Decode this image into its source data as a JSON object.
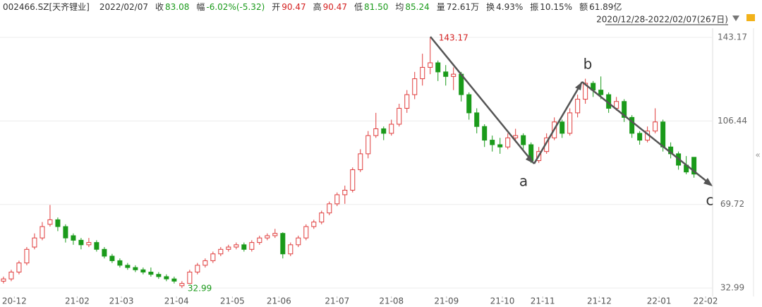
{
  "header": {
    "symbol": "002466.SZ[天齐锂业]",
    "date": "2022/02/07",
    "fields": [
      {
        "label": "收",
        "value": "83.08",
        "color": "#1a9a1a"
      },
      {
        "label": "幅",
        "value": "-6.02%(-5.32)",
        "color": "#1a9a1a"
      },
      {
        "label": "开",
        "value": "90.47",
        "color": "#d42020"
      },
      {
        "label": "高",
        "value": "90.47",
        "color": "#d42020"
      },
      {
        "label": "低",
        "value": "81.50",
        "color": "#1a9a1a"
      },
      {
        "label": "均",
        "value": "85.24",
        "color": "#1a9a1a"
      },
      {
        "label": "量",
        "value": "72.61万",
        "color": "#333333"
      },
      {
        "label": "换",
        "value": "4.93%",
        "color": "#333333"
      },
      {
        "label": "振",
        "value": "10.15%",
        "color": "#333333"
      },
      {
        "label": "额",
        "value": "61.89亿",
        "color": "#333333"
      }
    ],
    "range": "2020/12/28-2022/02/07(267日)"
  },
  "chart_data": {
    "type": "candlestick",
    "up_color": "#e03c3c",
    "down_color": "#1a9a1a",
    "ohlc": [
      [
        36,
        38,
        35,
        37
      ],
      [
        37,
        41,
        36,
        40
      ],
      [
        40,
        45,
        39,
        44
      ],
      [
        44,
        51,
        43,
        50
      ],
      [
        51,
        57,
        50,
        55
      ],
      [
        55,
        62,
        54,
        60
      ],
      [
        61,
        69.5,
        60,
        63
      ],
      [
        63,
        64,
        58,
        60
      ],
      [
        60,
        61,
        53,
        55
      ],
      [
        56,
        57,
        52,
        54
      ],
      [
        54,
        55,
        50,
        52
      ],
      [
        52,
        55,
        51,
        53
      ],
      [
        53,
        54,
        49,
        50
      ],
      [
        50,
        51,
        46,
        47
      ],
      [
        47,
        48,
        44,
        45
      ],
      [
        45,
        46,
        42,
        43
      ],
      [
        43,
        44,
        41,
        42
      ],
      [
        42,
        43,
        40,
        41
      ],
      [
        41,
        42,
        39,
        40
      ],
      [
        40,
        42,
        38,
        39
      ],
      [
        39,
        40,
        37,
        38
      ],
      [
        38,
        39,
        36,
        37
      ],
      [
        37,
        38,
        35,
        36
      ],
      [
        34,
        36,
        32.99,
        35
      ],
      [
        35,
        41,
        35,
        40
      ],
      [
        40,
        44,
        39,
        43
      ],
      [
        43,
        46,
        42,
        45
      ],
      [
        45,
        49,
        44,
        48
      ],
      [
        48,
        51,
        47,
        50
      ],
      [
        50,
        52,
        49,
        51
      ],
      [
        51,
        53,
        50,
        52
      ],
      [
        52,
        53,
        49,
        50
      ],
      [
        50,
        54,
        49,
        53
      ],
      [
        53,
        56,
        52,
        55
      ],
      [
        55,
        57,
        54,
        56
      ],
      [
        56,
        59,
        55,
        57
      ],
      [
        57,
        57.5,
        46,
        48
      ],
      [
        48,
        53,
        47,
        52
      ],
      [
        52,
        56,
        51,
        55
      ],
      [
        55,
        61,
        54,
        60
      ],
      [
        60,
        63,
        59,
        62
      ],
      [
        62,
        67,
        61,
        66
      ],
      [
        66,
        71,
        65,
        70
      ],
      [
        70,
        75,
        69,
        74
      ],
      [
        74,
        78,
        70,
        76
      ],
      [
        76,
        86,
        75,
        85
      ],
      [
        85,
        94,
        84,
        92
      ],
      [
        92,
        102,
        90,
        100
      ],
      [
        100,
        110,
        99,
        103
      ],
      [
        103,
        104,
        98,
        101
      ],
      [
        101,
        107,
        100,
        105
      ],
      [
        105,
        114,
        104,
        112
      ],
      [
        112,
        120,
        110,
        118
      ],
      [
        118,
        128,
        116,
        125
      ],
      [
        125,
        136,
        122,
        130
      ],
      [
        130,
        143.17,
        127,
        132
      ],
      [
        132,
        133,
        124,
        128
      ],
      [
        128,
        131,
        122,
        126
      ],
      [
        126,
        130,
        120,
        127
      ],
      [
        127,
        128,
        115,
        118
      ],
      [
        118,
        119,
        107,
        110
      ],
      [
        110,
        112,
        101,
        104
      ],
      [
        104,
        105,
        95,
        98
      ],
      [
        98,
        100,
        93,
        96
      ],
      [
        96,
        99,
        92,
        95
      ],
      [
        95,
        101,
        94,
        99
      ],
      [
        99,
        103,
        97,
        100
      ],
      [
        100,
        101,
        94,
        96
      ],
      [
        96,
        97,
        88,
        89
      ],
      [
        89,
        95,
        88,
        93
      ],
      [
        93,
        101,
        92,
        99
      ],
      [
        99,
        108,
        98,
        106
      ],
      [
        106,
        107,
        99,
        101
      ],
      [
        101,
        112,
        100,
        110
      ],
      [
        110,
        118,
        108,
        116
      ],
      [
        116,
        125,
        114,
        123
      ],
      [
        123,
        124,
        117,
        120
      ],
      [
        120,
        126,
        116,
        118
      ],
      [
        118,
        119,
        110,
        112
      ],
      [
        112,
        117,
        111,
        115
      ],
      [
        115,
        116,
        106,
        108
      ],
      [
        108,
        109,
        99,
        101
      ],
      [
        101,
        102,
        96,
        98
      ],
      [
        98,
        104,
        97,
        102
      ],
      [
        102,
        112,
        101,
        106
      ],
      [
        106,
        107,
        93,
        95
      ],
      [
        95,
        97,
        90,
        92
      ],
      [
        92,
        93,
        85,
        87
      ],
      [
        87,
        91,
        83,
        84
      ],
      [
        90.47,
        90.47,
        81.5,
        83.08
      ]
    ],
    "xlim": [
      -0.45,
      91.4
    ],
    "xticks": [
      {
        "value": 1.4,
        "label": "20-12"
      },
      {
        "value": 9.5,
        "label": "21-02"
      },
      {
        "value": 15.2,
        "label": "21-03"
      },
      {
        "value": 22.3,
        "label": "21-04"
      },
      {
        "value": 29.5,
        "label": "21-05"
      },
      {
        "value": 35.5,
        "label": "21-06"
      },
      {
        "value": 43,
        "label": "21-07"
      },
      {
        "value": 50,
        "label": "21-08"
      },
      {
        "value": 57.1,
        "label": "21-09"
      },
      {
        "value": 64.3,
        "label": "21-10"
      },
      {
        "value": 69.5,
        "label": "21-11"
      },
      {
        "value": 76.8,
        "label": "21-12"
      },
      {
        "value": 84.5,
        "label": "22-01"
      },
      {
        "value": 90.5,
        "label": "22-02"
      }
    ],
    "ylim": [
      29.3,
      147.2
    ],
    "yticks": [
      32.99,
      69.72,
      106.44,
      143.17
    ],
    "grid": true,
    "annotations": [
      {
        "text": "a"
      },
      {
        "text": "b"
      },
      {
        "text": "c"
      }
    ]
  }
}
